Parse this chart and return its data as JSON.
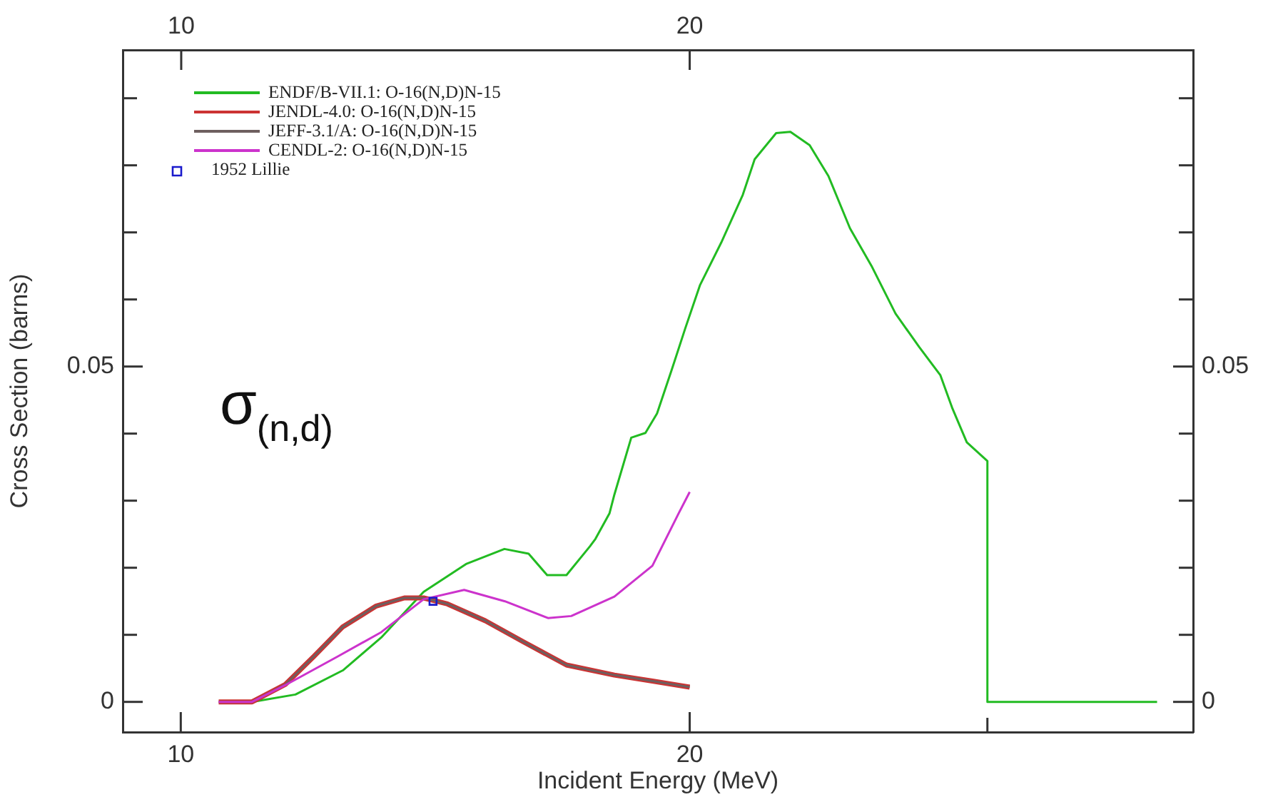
{
  "chart_data": {
    "type": "line",
    "xlabel": "Incident Energy (MeV)",
    "ylabel": "Cross Section (barns)",
    "log": "x",
    "marker": "none",
    "line_style": "solid",
    "legend": "top left",
    "xlim": [
      9.24,
      39.7
    ],
    "xticks": [
      10,
      20,
      {
        "value": 30,
        "label": null
      }
    ],
    "x2lim": [
      8.85,
      29.9
    ],
    "x2ticks": [
      10,
      20
    ],
    "ylim": [
      -0.0045,
      0.0972
    ],
    "yticks": [
      0,
      {
        "value": 0.01,
        "label": null
      },
      {
        "value": 0.02,
        "label": null
      },
      {
        "value": 0.03,
        "label": null
      },
      {
        "value": 0.04,
        "label": null
      },
      0.05,
      {
        "value": 0.06,
        "label": null
      },
      {
        "value": 0.07,
        "label": null
      },
      {
        "value": 0.08,
        "label": null
      },
      {
        "value": 0.09,
        "label": null
      }
    ],
    "y2lim": [
      -0.0045,
      0.0972
    ],
    "y2ticks": [
      0,
      {
        "value": 0.01,
        "label": null
      },
      {
        "value": 0.02,
        "label": null
      },
      {
        "value": 0.03,
        "label": null
      },
      {
        "value": 0.04,
        "label": null
      },
      0.05,
      {
        "value": 0.06,
        "label": null
      },
      {
        "value": 0.07,
        "label": null
      },
      {
        "value": 0.08,
        "label": null
      },
      {
        "value": 0.09,
        "label": null
      }
    ],
    "annotations": [
      "σ$_{(n,d)}$"
    ],
    "series": [
      {
        "name": "ENDF/B-VII.1: O-16(N,D)N-15",
        "color": "#22bb22",
        "x": [
          11.02,
          11.69,
          12.47,
          13.14,
          13.92,
          14.76,
          15.54,
          16.06,
          16.47,
          16.91,
          17.46,
          17.59,
          17.93,
          18.05,
          18.47,
          18.83,
          19.13,
          19.51,
          19.88,
          20.28,
          20.88,
          21.5,
          21.85,
          22.5,
          22.94,
          23.55,
          24.16,
          24.88,
          25.62,
          26.47,
          27.34,
          28.14,
          28.61,
          29.17,
          30,
          30,
          37.8
        ],
        "values": [
          0,
          0.0011,
          0.0047,
          0.0096,
          0.0164,
          0.0206,
          0.0228,
          0.0221,
          0.0189,
          0.0189,
          0.0232,
          0.0243,
          0.0281,
          0.0309,
          0.0394,
          0.0401,
          0.043,
          0.0494,
          0.0557,
          0.0621,
          0.0685,
          0.0756,
          0.0809,
          0.0848,
          0.085,
          0.083,
          0.0784,
          0.0706,
          0.065,
          0.0579,
          0.0529,
          0.0487,
          0.0437,
          0.0387,
          0.0359,
          0,
          0
        ]
      },
      {
        "name": "JENDL-4.0: O-16(N,D)N-15",
        "color": "#cc3333",
        "x": [
          10.53,
          11.02,
          11.53,
          11.99,
          12.47,
          13.05,
          13.56,
          13.92,
          14.38,
          15.14,
          15.96,
          16.91,
          18.05,
          19.01,
          20.0
        ],
        "values": [
          0,
          0,
          0.0026,
          0.0068,
          0.0112,
          0.0143,
          0.0155,
          0.0155,
          0.0146,
          0.0121,
          0.0089,
          0.0055,
          0.004,
          0.0031,
          0.0022
        ]
      },
      {
        "name": "JEFF-3.1/A: O-16(N,D)N-15",
        "color": "#6e5f5f",
        "x": [
          10.53,
          11.02,
          11.53,
          11.99,
          12.47,
          13.05,
          13.56,
          13.92,
          14.38,
          15.14,
          15.96,
          16.91,
          18.05,
          19.01,
          20.0
        ],
        "values": [
          0,
          0,
          0.0026,
          0.0068,
          0.0112,
          0.0143,
          0.0155,
          0.0155,
          0.0146,
          0.0121,
          0.0089,
          0.0055,
          0.004,
          0.0031,
          0.0022
        ]
      },
      {
        "name": "CENDL-2: O-16(N,D)N-15",
        "color": "#cc33cc",
        "x": [
          10.53,
          11.02,
          11.53,
          12.39,
          13.14,
          13.92,
          14.71,
          15.55,
          16.49,
          17.02,
          18.05,
          19.01,
          19.7,
          20.0
        ],
        "values": [
          0,
          0,
          0.0025,
          0.0068,
          0.0104,
          0.0153,
          0.0167,
          0.015,
          0.0125,
          0.0128,
          0.0157,
          0.0203,
          0.0281,
          0.0313
        ]
      },
      {
        "name": "1952 Lillie",
        "type": "scatter",
        "marker": "square",
        "color": "#1a1acc",
        "x": [
          14.1
        ],
        "values": [
          0.015
        ]
      }
    ]
  }
}
